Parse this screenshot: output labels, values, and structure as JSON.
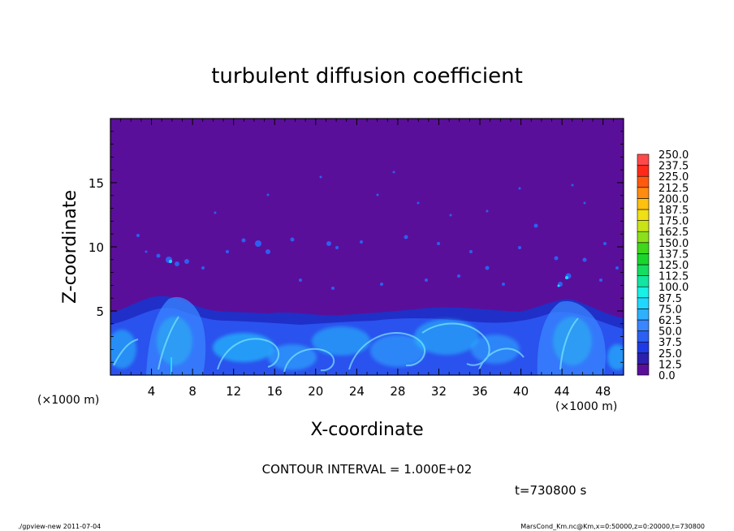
{
  "chart_data": {
    "type": "heatmap",
    "title": "turbulent diffusion coefficient",
    "xlabel": "X-coordinate",
    "ylabel": "Z-coordinate",
    "x_unit": "(×1000 m)",
    "z_unit": "(×1000 m)",
    "xlim": [
      0,
      50
    ],
    "ylim": [
      0,
      20
    ],
    "x_ticks": [
      4,
      8,
      12,
      16,
      20,
      24,
      28,
      32,
      36,
      40,
      44,
      48
    ],
    "y_ticks": [
      5,
      10,
      15
    ],
    "colorbar_levels": [
      "0.0",
      "12.5",
      "25.0",
      "37.5",
      "50.0",
      "62.5",
      "75.0",
      "87.5",
      "100.0",
      "112.5",
      "125.0",
      "137.5",
      "150.0",
      "162.5",
      "175.0",
      "187.5",
      "200.0",
      "212.5",
      "225.0",
      "237.5",
      "250.0"
    ],
    "colorbar_colors": [
      "#5a0f9a",
      "#2d1fb0",
      "#1f3be6",
      "#2b60f2",
      "#3a86ff",
      "#2fb0ff",
      "#20d8ff",
      "#19f0e6",
      "#12e6a0",
      "#14dd60",
      "#1ad62c",
      "#3fd81a",
      "#8be01a",
      "#c8e416",
      "#f0e014",
      "#ffc010",
      "#ff8c10",
      "#ff5a10",
      "#ff2a1a",
      "#ff4a4a",
      "#ff8080"
    ],
    "field_description_only_visual": true,
    "contour_interval": "CONTOUR INTERVAL = 1.000E+02",
    "time_label": "t=730800 s",
    "footer_left": "./gpview-new  2011-07-04",
    "footer_right": "MarsCond_Km.nc@Km,x=0:50000,z=0:20000,t=730800"
  }
}
